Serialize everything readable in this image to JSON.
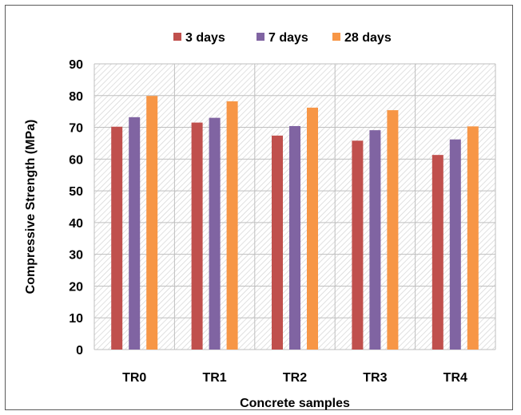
{
  "chart_data": {
    "type": "bar",
    "title": "",
    "xlabel": "Concrete samples",
    "ylabel": "Compressive Strength (MPa)",
    "categories": [
      "TR0",
      "TR1",
      "TR2",
      "TR3",
      "TR4"
    ],
    "series": [
      {
        "name": "3 days",
        "color": "#c0504d",
        "values": [
          70.2,
          71.5,
          67.4,
          65.8,
          61.3
        ]
      },
      {
        "name": "7 days",
        "color": "#8064a2",
        "values": [
          73.2,
          73.0,
          70.4,
          69.1,
          66.2
        ]
      },
      {
        "name": "28 days",
        "color": "#f79646",
        "values": [
          79.9,
          78.2,
          76.2,
          75.4,
          70.3
        ]
      }
    ],
    "ylim": [
      0,
      90
    ],
    "yticks": [
      0,
      10,
      20,
      30,
      40,
      50,
      60,
      70,
      80,
      90
    ],
    "grid": true,
    "legend_position": "top"
  }
}
